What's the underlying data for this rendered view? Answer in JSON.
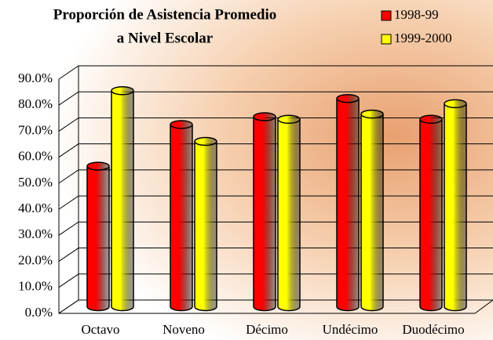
{
  "chart_data": {
    "type": "bar",
    "title": [
      "Proporción de Asistencia Promedio",
      "a Nivel Escolar"
    ],
    "categories": [
      "Octavo",
      "Noveno",
      "Décimo",
      "Undécimo",
      "Duodécimo"
    ],
    "series": [
      {
        "name": "1998-99",
        "color": "#ff0000",
        "values": [
          54,
          70,
          73,
          80,
          72
        ]
      },
      {
        "name": "1999-2000",
        "color": "#ffff00",
        "values": [
          83,
          63.5,
          72,
          74,
          78
        ]
      }
    ],
    "ylim": [
      0,
      90
    ],
    "yticks": [
      {
        "value": 0,
        "label": "0.0%"
      },
      {
        "value": 10,
        "label": "10.0%"
      },
      {
        "value": 20,
        "label": "20.0%"
      },
      {
        "value": 30,
        "label": "30.0%"
      },
      {
        "value": 40,
        "label": "40.0%"
      },
      {
        "value": 50,
        "label": "50.0%"
      },
      {
        "value": 60,
        "label": "60.0%"
      },
      {
        "value": 70,
        "label": "70.0%"
      },
      {
        "value": 80,
        "label": "80.0%"
      },
      {
        "value": 90,
        "label": "90.0%"
      }
    ],
    "grid": true,
    "legend": "top-right"
  }
}
